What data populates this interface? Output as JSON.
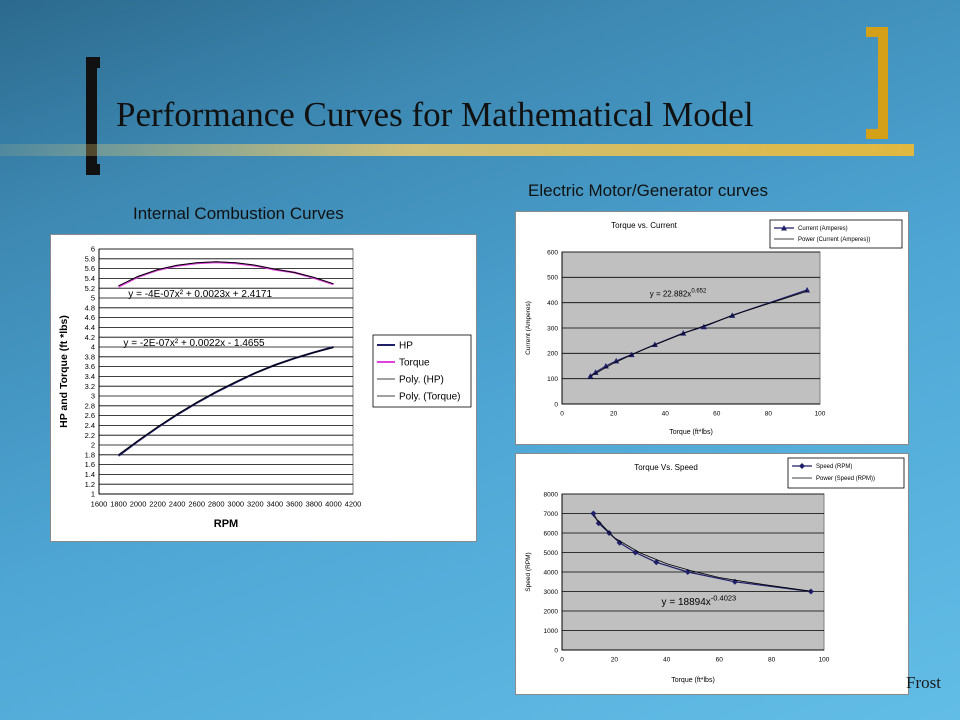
{
  "slide": {
    "title": "Performance Curves for Mathematical Model",
    "subtitle_ic": "Internal Combustion Curves",
    "subtitle_em": "Electric Motor/Generator curves",
    "footer": "Frost"
  },
  "colors": {
    "frame_left": "#111111",
    "frame_right": "#d4a017",
    "navy": "#1f1f6b",
    "magenta": "#e040e0"
  },
  "chart_data": [
    {
      "type": "line",
      "xlabel": "RPM",
      "ylabel": "HP and Torque (ft *lbs)",
      "xlim": [
        1600,
        4200
      ],
      "ylim": [
        1,
        6
      ],
      "xticks": [
        1600,
        1800,
        2000,
        2200,
        2400,
        2600,
        2800,
        3000,
        3200,
        3400,
        3600,
        3800,
        4000,
        4200
      ],
      "yticks": [
        1,
        1.2,
        1.4,
        1.6,
        1.8,
        2,
        2.2,
        2.4,
        2.6,
        2.8,
        3,
        3.2,
        3.4,
        3.6,
        3.8,
        4,
        4.2,
        4.4,
        4.6,
        4.8,
        5,
        5.2,
        5.4,
        5.6,
        5.8,
        6
      ],
      "grid": "horizontal",
      "plot_background": "#ffffff",
      "legend_position": "right",
      "legend": [
        "HP",
        "Torque",
        "Poly. (HP)",
        "Poly. (Torque)"
      ],
      "series": [
        {
          "name": "HP",
          "color": "#1f1f6b",
          "x": [
            1800,
            2000,
            2200,
            2400,
            2600,
            2800,
            3000,
            3200,
            3400,
            3600,
            3800,
            4000
          ],
          "y": [
            1.78,
            2.08,
            2.36,
            2.62,
            2.86,
            3.08,
            3.28,
            3.47,
            3.63,
            3.77,
            3.89,
            4.0
          ]
        },
        {
          "name": "Torque",
          "color": "#e040e0",
          "x": [
            1800,
            2000,
            2200,
            2400,
            2600,
            2800,
            3000,
            3200,
            3400,
            3600,
            3800,
            4000
          ],
          "y": [
            5.23,
            5.43,
            5.57,
            5.66,
            5.71,
            5.73,
            5.71,
            5.66,
            5.58,
            5.52,
            5.41,
            5.28
          ]
        },
        {
          "name": "Poly. (HP)",
          "color": "#000000",
          "x": [
            1800,
            2000,
            2200,
            2400,
            2600,
            2800,
            3000,
            3200,
            3400,
            3600,
            3800,
            4000
          ],
          "y": [
            1.8,
            2.09,
            2.37,
            2.63,
            2.87,
            3.09,
            3.29,
            3.47,
            3.63,
            3.77,
            3.89,
            3.99
          ]
        },
        {
          "name": "Poly. (Torque)",
          "color": "#000000",
          "x": [
            1800,
            2000,
            2200,
            2400,
            2600,
            2800,
            3000,
            3200,
            3400,
            3600,
            3800,
            4000
          ],
          "y": [
            5.25,
            5.44,
            5.58,
            5.67,
            5.72,
            5.74,
            5.72,
            5.67,
            5.59,
            5.52,
            5.42,
            5.29
          ]
        }
      ],
      "annotations": [
        {
          "text": "y = -4E-07x² + 0.0023x + 2.4171",
          "x": 1900,
          "y": 5.02
        },
        {
          "text": "y = -2E-07x² + 0.0022x - 1.4655",
          "x": 1850,
          "y": 4.02
        }
      ]
    },
    {
      "type": "line",
      "title": "Torque vs. Current",
      "xlabel": "Torque (ft*lbs)",
      "ylabel": "Current (Amperes)",
      "xlim": [
        0,
        100
      ],
      "ylim": [
        0,
        600
      ],
      "xticks": [
        0,
        20,
        40,
        60,
        80,
        100
      ],
      "yticks": [
        0,
        100,
        200,
        300,
        400,
        500,
        600
      ],
      "grid": "horizontal",
      "plot_background": "#c0c0c0",
      "legend_position": "top-right",
      "legend": [
        "Current (Amperes)",
        "Power (Current (Amperes))"
      ],
      "series": [
        {
          "name": "Current (Amperes)",
          "color": "#1f1f6b",
          "marker": "triangle",
          "x": [
            11,
            13,
            17,
            21,
            27,
            36,
            47,
            55,
            66,
            95
          ],
          "y": [
            110,
            125,
            150,
            170,
            195,
            235,
            280,
            305,
            350,
            450
          ]
        },
        {
          "name": "Power (Current (Amperes))",
          "color": "#000000",
          "x": [
            11,
            20,
            30,
            40,
            50,
            60,
            70,
            80,
            95
          ],
          "y": [
            109,
            161,
            208,
            250,
            290,
            327,
            363,
            396,
            445
          ]
        }
      ],
      "annotations": [
        {
          "text": "y = 22.882x",
          "sup": "0.652",
          "x": 34,
          "y": 425
        }
      ]
    },
    {
      "type": "line",
      "title": "Torque Vs. Speed",
      "xlabel": "Torque (ft*lbs)",
      "ylabel": "Speed (RPM)",
      "xlim": [
        0,
        100
      ],
      "ylim": [
        0,
        8000
      ],
      "xticks": [
        0,
        20,
        40,
        60,
        80,
        100
      ],
      "yticks": [
        0,
        1000,
        2000,
        3000,
        4000,
        5000,
        6000,
        7000,
        8000
      ],
      "grid": "horizontal",
      "plot_background": "#c0c0c0",
      "legend_position": "top-right",
      "legend": [
        "Speed (RPM)",
        "Power (Speed (RPM))"
      ],
      "series": [
        {
          "name": "Speed (RPM)",
          "color": "#1f1f6b",
          "marker": "diamond",
          "x": [
            12,
            14,
            18,
            22,
            28,
            36,
            48,
            66,
            95
          ],
          "y": [
            7000,
            6500,
            6000,
            5500,
            5000,
            4500,
            4000,
            3500,
            3000
          ]
        },
        {
          "name": "Power (Speed (RPM))",
          "color": "#000000",
          "x": [
            12,
            20,
            30,
            40,
            50,
            60,
            70,
            80,
            95
          ],
          "y": [
            6880,
            5750,
            4970,
            4420,
            4040,
            3720,
            3500,
            3300,
            3020
          ]
        }
      ],
      "annotations": [
        {
          "text": "y = 18894x",
          "sup": "-0.4023",
          "x": 38,
          "y": 2300
        }
      ]
    }
  ]
}
